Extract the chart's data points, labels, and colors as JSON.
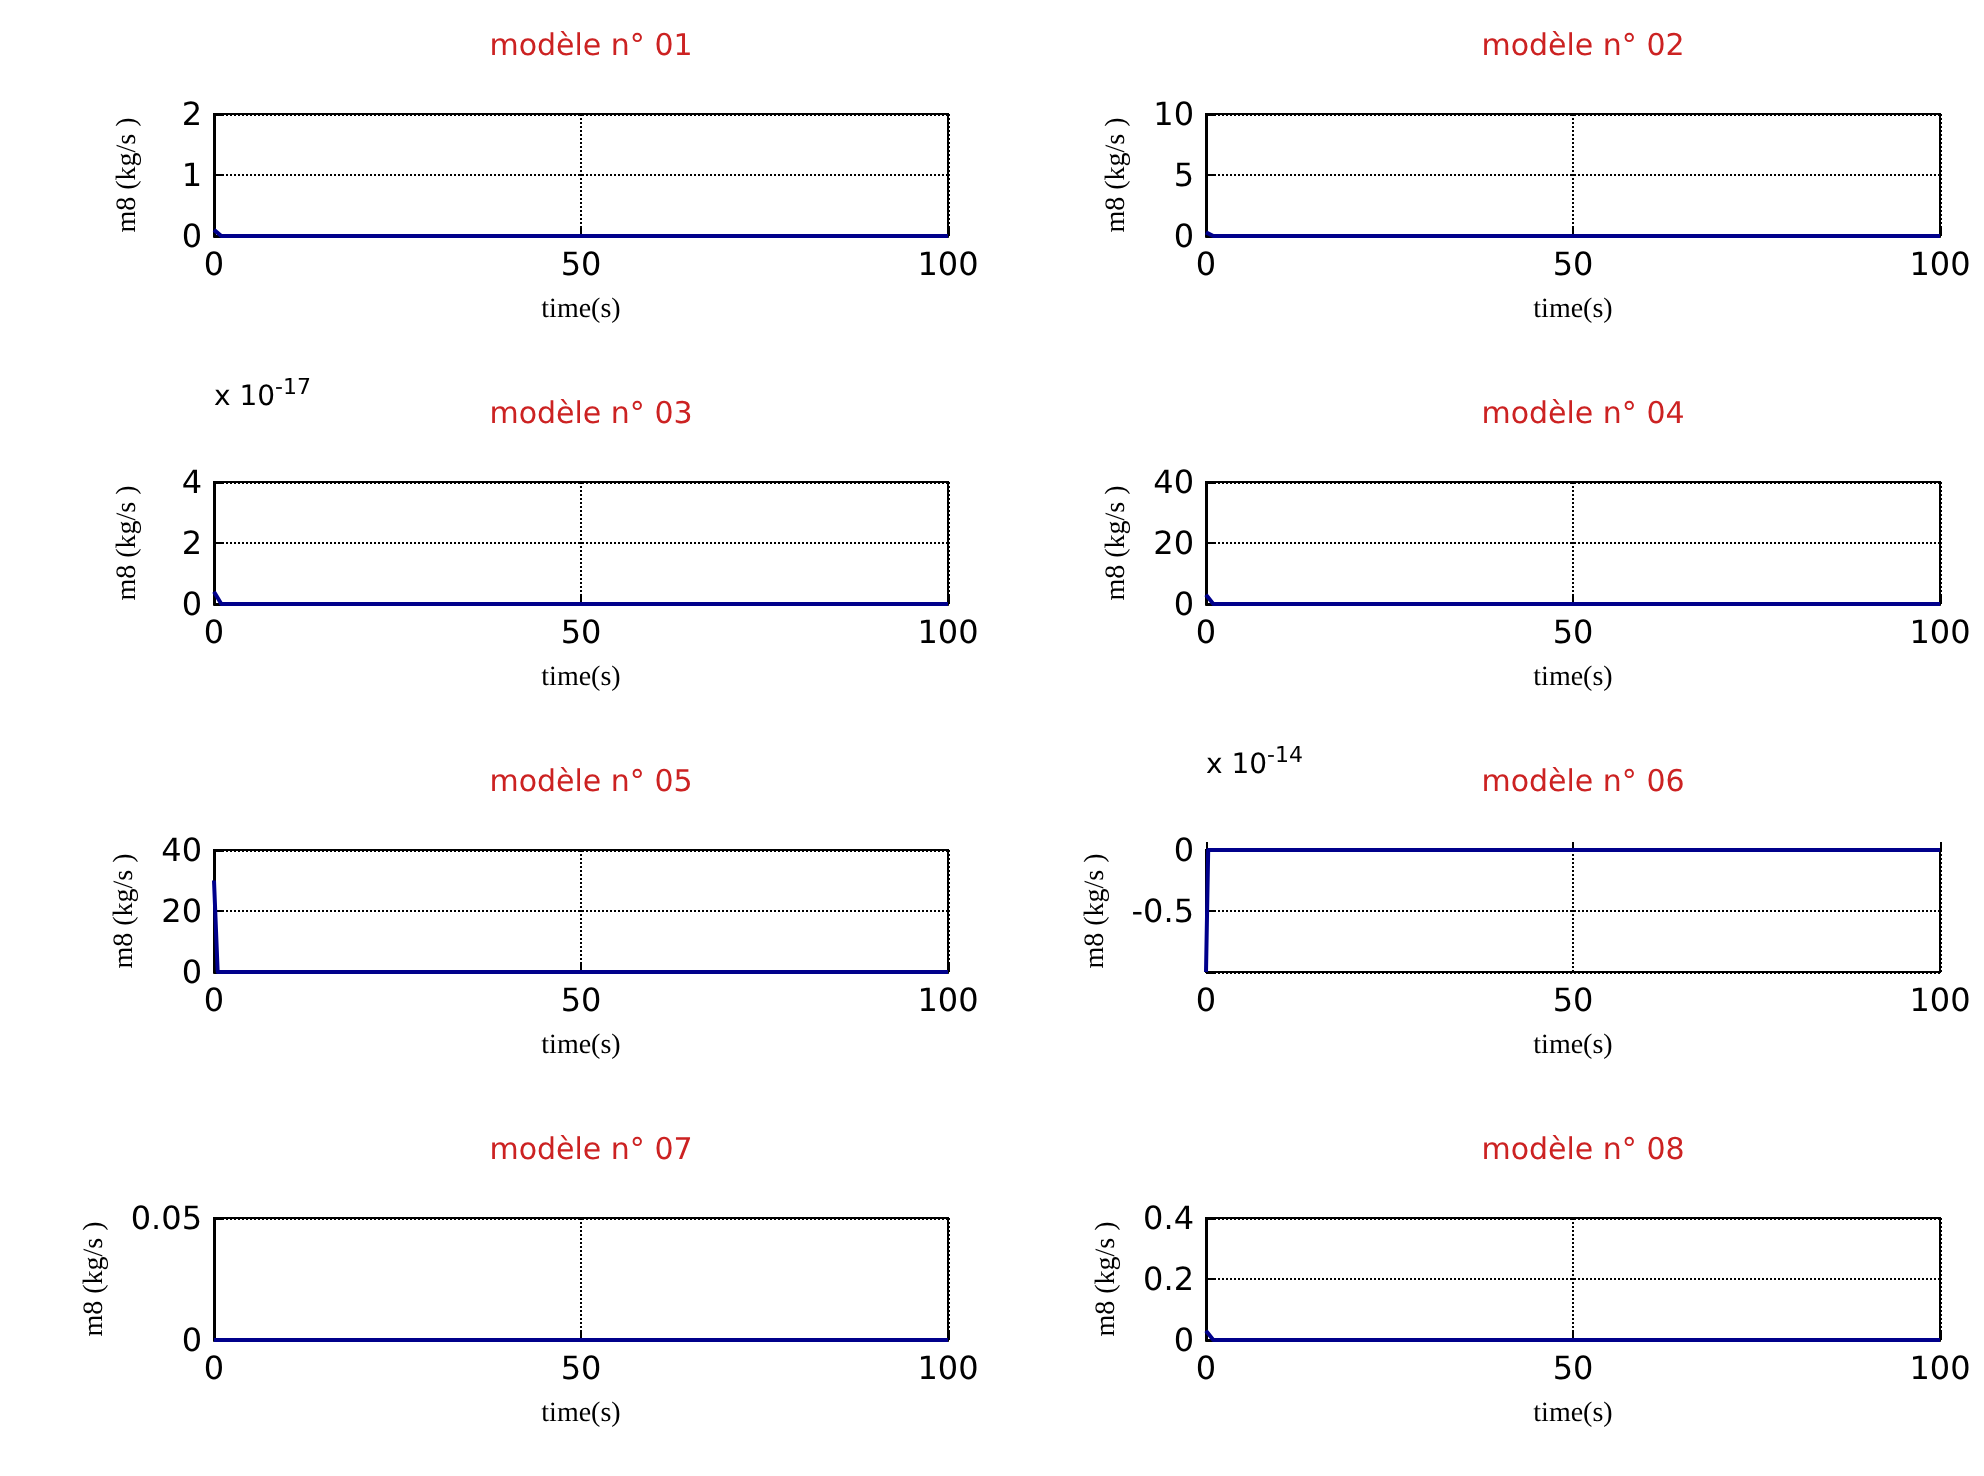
{
  "chart_data": [
    {
      "type": "line",
      "title": "modèle n° 01",
      "xlabel": "time(s)",
      "ylabel": "m8 (kg/s )",
      "x": [
        0,
        1,
        100
      ],
      "series": [
        {
          "color": "#00008b",
          "values": [
            0.1,
            0,
            0
          ]
        }
      ],
      "xlim": [
        0,
        100
      ],
      "xticks": [
        0,
        50,
        100
      ],
      "ylim": [
        0,
        2
      ],
      "yticks": [
        0,
        1,
        2
      ],
      "grid": true,
      "marker": "none",
      "line_style": "solid"
    },
    {
      "type": "line",
      "title": "modèle n° 02",
      "xlabel": "time(s)",
      "ylabel": "m8 (kg/s )",
      "x": [
        0,
        1,
        100
      ],
      "series": [
        {
          "color": "#00008b",
          "values": [
            0.3,
            0,
            0
          ]
        }
      ],
      "xlim": [
        0,
        100
      ],
      "xticks": [
        0,
        50,
        100
      ],
      "ylim": [
        0,
        10
      ],
      "yticks": [
        0,
        5,
        10
      ],
      "grid": true,
      "marker": "none",
      "line_style": "solid"
    },
    {
      "type": "line",
      "title": "modèle n° 03",
      "xlabel": "time(s)",
      "ylabel": "m8 (kg/s )",
      "annotations": [
        "x 10$^{-17}$"
      ],
      "x": [
        0,
        1,
        100
      ],
      "series": [
        {
          "color": "#00008b",
          "values": [
            0.4,
            0,
            0
          ]
        }
      ],
      "xlim": [
        0,
        100
      ],
      "xticks": [
        0,
        50,
        100
      ],
      "ylim": [
        0,
        4
      ],
      "yticks": [
        0,
        2,
        4
      ],
      "grid": true,
      "marker": "none",
      "line_style": "solid"
    },
    {
      "type": "line",
      "title": "modèle n° 04",
      "xlabel": "time(s)",
      "ylabel": "m8 (kg/s )",
      "x": [
        0,
        1,
        100
      ],
      "series": [
        {
          "color": "#00008b",
          "values": [
            3,
            0,
            0
          ]
        }
      ],
      "xlim": [
        0,
        100
      ],
      "xticks": [
        0,
        50,
        100
      ],
      "ylim": [
        0,
        40
      ],
      "yticks": [
        0,
        20,
        40
      ],
      "grid": true,
      "marker": "none",
      "line_style": "solid"
    },
    {
      "type": "line",
      "title": "modèle n° 05",
      "xlabel": "time(s)",
      "ylabel": "m8 (kg/s )",
      "x": [
        0,
        0.5,
        100
      ],
      "series": [
        {
          "color": "#00008b",
          "values": [
            30,
            0,
            0
          ]
        }
      ],
      "xlim": [
        0,
        100
      ],
      "xticks": [
        0,
        50,
        100
      ],
      "ylim": [
        0,
        40
      ],
      "yticks": [
        0,
        20,
        40
      ],
      "grid": true,
      "marker": "none",
      "line_style": "solid"
    },
    {
      "type": "line",
      "title": "modèle n° 06",
      "xlabel": "time(s)",
      "ylabel": "m8 (kg/s )",
      "annotations": [
        "x 10$^{-14}$"
      ],
      "x": [
        0,
        0.3,
        100
      ],
      "series": [
        {
          "color": "#00008b",
          "values": [
            -1,
            0,
            0
          ]
        }
      ],
      "xlim": [
        0,
        100
      ],
      "xticks": [
        0,
        50,
        100
      ],
      "ylim": [
        -1,
        0
      ],
      "yticks": [
        -0.5,
        0
      ],
      "grid": true,
      "marker": "none",
      "line_style": "solid"
    },
    {
      "type": "line",
      "title": "modèle n° 07",
      "xlabel": "time(s)",
      "ylabel": "m8 (kg/s )",
      "x": [
        0,
        100
      ],
      "series": [
        {
          "color": "#00008b",
          "values": [
            0,
            0
          ]
        }
      ],
      "xlim": [
        0,
        100
      ],
      "xticks": [
        0,
        50,
        100
      ],
      "ylim": [
        0,
        0.05
      ],
      "yticks": [
        0,
        0.05
      ],
      "grid": true,
      "marker": "none",
      "line_style": "solid"
    },
    {
      "type": "line",
      "title": "modèle n° 08",
      "xlabel": "time(s)",
      "ylabel": "m8 (kg/s )",
      "x": [
        0,
        1,
        100
      ],
      "series": [
        {
          "color": "#00008b",
          "values": [
            0.03,
            0,
            0
          ]
        }
      ],
      "xlim": [
        0,
        100
      ],
      "xticks": [
        0,
        50,
        100
      ],
      "ylim": [
        0,
        0.4
      ],
      "yticks": [
        0,
        0.2,
        0.4
      ],
      "grid": true,
      "marker": "none",
      "line_style": "solid"
    }
  ]
}
